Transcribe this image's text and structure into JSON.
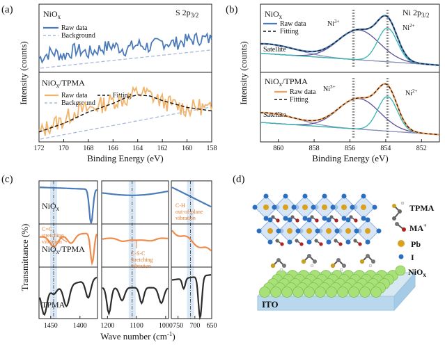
{
  "panels": {
    "a": {
      "label": "(a)"
    },
    "b": {
      "label": "(b)"
    },
    "c": {
      "label": "(c)"
    },
    "d": {
      "label": "(d)"
    }
  },
  "chart_data": [
    {
      "type": "line",
      "panel": "a",
      "title": "S 2p3/2",
      "title_main": "S 2p",
      "title_sub": "3/2",
      "xlabel": "Binding Energy (eV)",
      "ylabel": "Intensity (counts)",
      "xlim": [
        172,
        158
      ],
      "xticks": [
        "172",
        "170",
        "168",
        "166",
        "164",
        "162",
        "160",
        "158"
      ],
      "subplots": [
        {
          "sample": "NiOx",
          "sample_main": "NiO",
          "sample_sub": "x",
          "legend": [
            "Raw data",
            "Background"
          ],
          "series": [
            {
              "name": "Raw data",
              "color": "#4a7ab8",
              "x": [
                172,
                171,
                170,
                169,
                168,
                167,
                166,
                165,
                164,
                163,
                162,
                161,
                160,
                159,
                158
              ],
              "values": [
                0.22,
                0.35,
                0.28,
                0.4,
                0.33,
                0.42,
                0.48,
                0.4,
                0.5,
                0.45,
                0.55,
                0.52,
                0.58,
                0.62,
                0.6
              ]
            },
            {
              "name": "Background",
              "color": "#a9b8dd",
              "x": [
                172,
                158
              ],
              "values": [
                0.15,
                0.55
              ]
            }
          ]
        },
        {
          "sample": "NiOx/TPMA",
          "sample_main": "NiO",
          "sample_sub": "x",
          "sample_suffix": "/TPMA",
          "legend": [
            "Raw data",
            "Fitting",
            "Background"
          ],
          "series": [
            {
              "name": "Raw data",
              "color": "#f2b46a",
              "x": [
                172,
                171,
                170,
                169,
                168,
                167,
                166,
                165,
                164,
                163,
                162,
                161,
                160,
                159,
                158
              ],
              "values": [
                0.12,
                0.28,
                0.35,
                0.52,
                0.55,
                0.62,
                0.7,
                0.72,
                0.85,
                0.8,
                0.68,
                0.62,
                0.55,
                0.6,
                0.52
              ]
            },
            {
              "name": "Fitting",
              "color": "#111111",
              "x": [
                172,
                170,
                168,
                166,
                165,
                164,
                163,
                162,
                160,
                158
              ],
              "values": [
                0.15,
                0.3,
                0.5,
                0.65,
                0.75,
                0.8,
                0.78,
                0.7,
                0.58,
                0.52
              ]
            },
            {
              "name": "Background",
              "color": "#a9b8dd",
              "x": [
                172,
                158
              ],
              "values": [
                0.05,
                0.5
              ]
            }
          ]
        }
      ]
    },
    {
      "type": "line",
      "panel": "b",
      "title": "Ni 2p3/2",
      "title_main": "Ni 2p",
      "title_sub": "3/2",
      "xlabel": "Binding Energy (eV)",
      "ylabel": "Intensity (counts)",
      "xlim": [
        861,
        851
      ],
      "xticks": [
        "860",
        "858",
        "856",
        "854",
        "852"
      ],
      "annotations": [
        "Ni3+",
        "Ni2+",
        "Satellite"
      ],
      "subplots": [
        {
          "sample": "NiOx",
          "sample_main": "NiO",
          "sample_sub": "x",
          "legend": [
            "Raw data",
            "Fitting"
          ],
          "peaks": {
            "Ni3+": 855.8,
            "Ni2+": 853.9
          },
          "series": [
            {
              "name": "Raw data",
              "color": "#4a7ab8",
              "x": [
                861,
                860,
                859,
                858,
                857,
                856.5,
                856,
                855.5,
                855,
                854.5,
                854,
                853.5,
                853,
                852.5,
                852,
                851
              ],
              "values": [
                0.3,
                0.34,
                0.4,
                0.5,
                0.62,
                0.7,
                0.76,
                0.8,
                0.82,
                0.88,
                0.96,
                0.8,
                0.45,
                0.22,
                0.14,
                0.1
              ]
            },
            {
              "name": "Fitting",
              "color": "#111111",
              "x": [
                861,
                860,
                859,
                858,
                857,
                856.5,
                856,
                855.5,
                855,
                854.5,
                854,
                853.5,
                853,
                852.5,
                852,
                851
              ],
              "values": [
                0.3,
                0.34,
                0.4,
                0.5,
                0.62,
                0.7,
                0.76,
                0.8,
                0.82,
                0.88,
                0.96,
                0.8,
                0.45,
                0.22,
                0.14,
                0.1
              ]
            }
          ]
        },
        {
          "sample": "NiOx/TPMA",
          "sample_main": "NiO",
          "sample_sub": "x",
          "sample_suffix": "/TPMA",
          "legend": [
            "Raw data",
            "Fitting"
          ],
          "peaks": {
            "Ni3+": 855.8,
            "Ni2+": 853.9
          },
          "series": [
            {
              "name": "Raw data",
              "color": "#f2a060",
              "x": [
                861,
                860,
                859,
                858,
                857,
                856.5,
                856,
                855.5,
                855,
                854.5,
                854,
                853.5,
                853,
                852.5,
                852,
                851
              ],
              "values": [
                0.3,
                0.34,
                0.4,
                0.5,
                0.62,
                0.7,
                0.76,
                0.8,
                0.82,
                0.88,
                0.96,
                0.8,
                0.45,
                0.22,
                0.14,
                0.1
              ]
            },
            {
              "name": "Fitting",
              "color": "#111111",
              "x": [
                861,
                860,
                859,
                858,
                857,
                856.5,
                856,
                855.5,
                855,
                854.5,
                854,
                853.5,
                853,
                852.5,
                852,
                851
              ],
              "values": [
                0.3,
                0.34,
                0.4,
                0.5,
                0.62,
                0.7,
                0.76,
                0.8,
                0.82,
                0.88,
                0.96,
                0.8,
                0.45,
                0.22,
                0.14,
                0.1
              ]
            }
          ]
        }
      ]
    },
    {
      "type": "line",
      "panel": "c",
      "xlabel": "Wave number (cm-1)",
      "xlabel_main": "Wave number (cm",
      "xlabel_sup": "-1",
      "xlabel_end": ")",
      "ylabel": "Transmittance (%)",
      "segments": [
        {
          "xlim": [
            1470,
            1370
          ],
          "xticks": [
            "1450",
            "1400"
          ],
          "marker": 1445
        },
        {
          "xlim": [
            1220,
            990
          ],
          "xticks": [
            "1200",
            "1100",
            "1000"
          ],
          "marker": 1115
        },
        {
          "xlim": [
            770,
            650
          ],
          "xticks": [
            "750",
            "700",
            "650"
          ],
          "marker": 713
        }
      ],
      "rows": [
        {
          "name": "NiOx",
          "label_main": "NiO",
          "label_sub": "x",
          "color": "#4a7ab8"
        },
        {
          "name": "NiOx/TPMA",
          "label_main": "NiO",
          "label_sub": "x",
          "label_suffix": "/TPMA",
          "color": "#ef8b4a"
        },
        {
          "name": "TPMA",
          "label_main": "TPMA",
          "color": "#2b2b2b"
        }
      ],
      "annotations": [
        {
          "text_lines": [
            "C=C",
            "stretching",
            "vibration"
          ],
          "color": "#e0782f"
        },
        {
          "text_lines": [
            "C-S-C",
            "stretching",
            "vibration"
          ],
          "color": "#e0782f"
        },
        {
          "text_lines": [
            "C-H",
            "out-of-plane",
            "vibration"
          ],
          "color": "#e0782f"
        }
      ]
    }
  ],
  "schematic": {
    "substrate_label": "ITO",
    "legend": [
      {
        "main": "TPMA"
      },
      {
        "main": "MA",
        "sup": "+"
      },
      {
        "main": "Pb"
      },
      {
        "main": "I"
      },
      {
        "main": "NiO",
        "sub": "x"
      }
    ]
  }
}
